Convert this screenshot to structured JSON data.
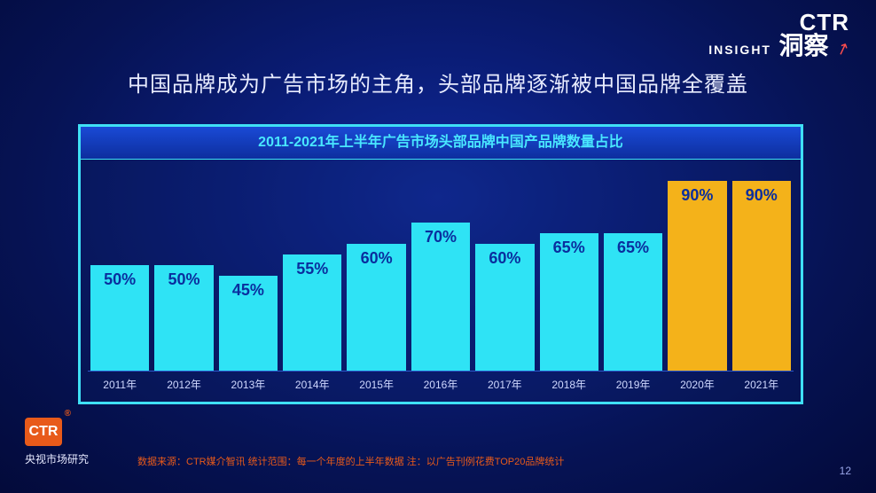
{
  "logo_top": {
    "ctr": "CTR",
    "insight": "INSIGHT",
    "cn": "洞察"
  },
  "title": "中国品牌成为广告市场的主角，头部品牌逐渐被中国品牌全覆盖",
  "chart": {
    "type": "bar",
    "header": "2011-2021年上半年广告市场头部品牌中国产品牌数量占比",
    "categories": [
      "2011年",
      "2012年",
      "2013年",
      "2014年",
      "2015年",
      "2016年",
      "2017年",
      "2018年",
      "2019年",
      "2020年",
      "2021年"
    ],
    "values": [
      50,
      50,
      45,
      55,
      60,
      70,
      60,
      65,
      65,
      90,
      90
    ],
    "value_labels": [
      "50%",
      "50%",
      "45%",
      "55%",
      "60%",
      "70%",
      "60%",
      "65%",
      "65%",
      "90%",
      "90%"
    ],
    "bar_colors": [
      "#2fe3f5",
      "#2fe3f5",
      "#2fe3f5",
      "#2fe3f5",
      "#2fe3f5",
      "#2fe3f5",
      "#2fe3f5",
      "#2fe3f5",
      "#2fe3f5",
      "#f4b21a",
      "#f4b21a"
    ],
    "label_colors": [
      "#0a2e9e",
      "#0a2e9e",
      "#0a2e9e",
      "#0a2e9e",
      "#0a2e9e",
      "#0a2e9e",
      "#0a2e9e",
      "#0a2e9e",
      "#0a2e9e",
      "#0a2e9e",
      "#0a2e9e"
    ],
    "ylim": [
      0,
      100
    ],
    "bar_height_scale_pct": 2.38,
    "label_fontsize": 18,
    "tick_fontsize": 12,
    "tick_color": "#cfd8ff",
    "border_color": "#3fe0f5",
    "header_text_color": "#49e7ff",
    "background": "rgba(10,30,100,0.25)"
  },
  "footer_logo": {
    "box": "CTR",
    "text": "央视市场研究"
  },
  "source": "数据来源：CTR媒介智讯  统计范围：每一个年度的上半年数据  注：以广告刊例花费TOP20品牌统计",
  "page_number": "12",
  "slide_bg": "radial-gradient(#102a9a,#030a3a)"
}
